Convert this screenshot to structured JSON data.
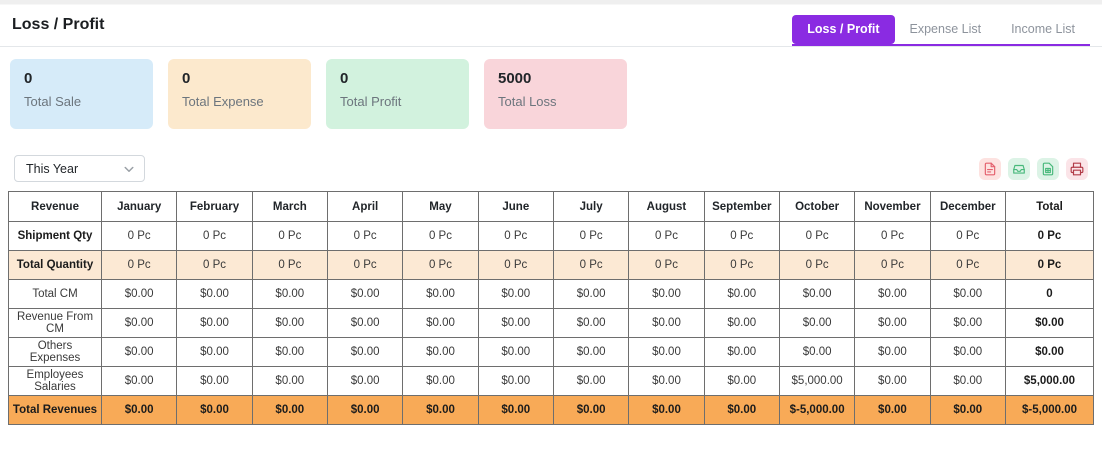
{
  "page": {
    "title": "Loss / Profit"
  },
  "tabs": [
    {
      "label": "Loss / Profit",
      "active": true
    },
    {
      "label": "Expense List",
      "active": false
    },
    {
      "label": "Income List",
      "active": false
    }
  ],
  "summary_cards": [
    {
      "value": "0",
      "label": "Total Sale",
      "bg": "#d6ebf9"
    },
    {
      "value": "0",
      "label": "Total Expense",
      "bg": "#fce9cd"
    },
    {
      "value": "0",
      "label": "Total Profit",
      "bg": "#d2f2de"
    },
    {
      "value": "5000",
      "label": "Total Loss",
      "bg": "#f9d5da"
    }
  ],
  "filters": {
    "period_selected": "This Year"
  },
  "export_buttons": [
    {
      "name": "pdf-export",
      "icon": "pdf-file-icon",
      "bg": "#fde2e0",
      "color": "#e4606d"
    },
    {
      "name": "csv-export",
      "icon": "download-tray-icon",
      "bg": "#dcf3e6",
      "color": "#49b97c"
    },
    {
      "name": "excel-export",
      "icon": "spreadsheet-file-icon",
      "bg": "#dcf3e6",
      "color": "#49b97c"
    },
    {
      "name": "print",
      "icon": "printer-icon",
      "bg": "#fbe4e8",
      "color": "#b23b48"
    }
  ],
  "colors": {
    "accent_purple": "#8a2be2",
    "highlight_peach": "#fce9d4",
    "highlight_orange": "#f8aa57",
    "table_border": "#6e6e6e"
  },
  "table": {
    "columns": [
      "Revenue",
      "January",
      "February",
      "March",
      "April",
      "May",
      "June",
      "July",
      "August",
      "September",
      "October",
      "November",
      "December",
      "Total"
    ],
    "rows": [
      {
        "label": "Shipment Qty",
        "labelBold": true,
        "highlight": "none",
        "values": [
          "0 Pc",
          "0 Pc",
          "0 Pc",
          "0 Pc",
          "0 Pc",
          "0 Pc",
          "0 Pc",
          "0 Pc",
          "0 Pc",
          "0 Pc",
          "0 Pc",
          "0 Pc",
          "0 Pc"
        ]
      },
      {
        "label": "Total Quantity",
        "labelBold": true,
        "highlight": "peach",
        "values": [
          "0 Pc",
          "0 Pc",
          "0 Pc",
          "0 Pc",
          "0 Pc",
          "0 Pc",
          "0 Pc",
          "0 Pc",
          "0 Pc",
          "0 Pc",
          "0 Pc",
          "0 Pc",
          "0 Pc"
        ]
      },
      {
        "label": "Total CM",
        "labelBold": false,
        "highlight": "none",
        "values": [
          "$0.00",
          "$0.00",
          "$0.00",
          "$0.00",
          "$0.00",
          "$0.00",
          "$0.00",
          "$0.00",
          "$0.00",
          "$0.00",
          "$0.00",
          "$0.00",
          "0"
        ]
      },
      {
        "label": "Revenue From CM",
        "labelBold": false,
        "highlight": "none",
        "values": [
          "$0.00",
          "$0.00",
          "$0.00",
          "$0.00",
          "$0.00",
          "$0.00",
          "$0.00",
          "$0.00",
          "$0.00",
          "$0.00",
          "$0.00",
          "$0.00",
          "$0.00"
        ]
      },
      {
        "label": "Others Expenses",
        "labelBold": false,
        "highlight": "none",
        "values": [
          "$0.00",
          "$0.00",
          "$0.00",
          "$0.00",
          "$0.00",
          "$0.00",
          "$0.00",
          "$0.00",
          "$0.00",
          "$0.00",
          "$0.00",
          "$0.00",
          "$0.00"
        ]
      },
      {
        "label": "Employees Salaries",
        "labelBold": false,
        "highlight": "none",
        "values": [
          "$0.00",
          "$0.00",
          "$0.00",
          "$0.00",
          "$0.00",
          "$0.00",
          "$0.00",
          "$0.00",
          "$0.00",
          "$5,000.00",
          "$0.00",
          "$0.00",
          "$5,000.00"
        ]
      },
      {
        "label": "Total Revenues",
        "labelBold": true,
        "highlight": "orange",
        "values": [
          "$0.00",
          "$0.00",
          "$0.00",
          "$0.00",
          "$0.00",
          "$0.00",
          "$0.00",
          "$0.00",
          "$0.00",
          "$-5,000.00",
          "$0.00",
          "$0.00",
          "$-5,000.00"
        ]
      }
    ]
  }
}
